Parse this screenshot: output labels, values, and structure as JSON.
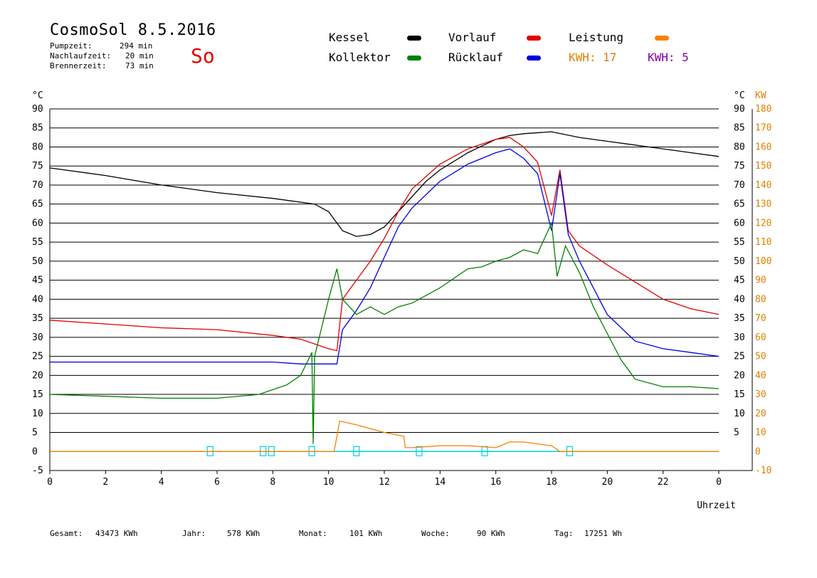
{
  "header": {
    "title": "CosmoSol 8.5.2016",
    "info": [
      {
        "label": "Pumpzeit:",
        "value": "294 min"
      },
      {
        "label": "Nachlaufzeit:",
        "value": "20 min"
      },
      {
        "label": "Brennerzeit:",
        "value": "73 min"
      }
    ],
    "weekday": "So"
  },
  "legend": {
    "kessel": {
      "label": "Kessel",
      "color": "#000000"
    },
    "vorlauf": {
      "label": "Vorlauf",
      "color": "#e00000"
    },
    "leistung": {
      "label": "Leistung",
      "color": "#ff8000"
    },
    "kollektor": {
      "label": "Kollektor",
      "color": "#008000"
    },
    "ruecklauf": {
      "label": "Rücklauf",
      "color": "#0000e0"
    },
    "kwh1": {
      "label": "KWH: 17",
      "color": "#e08000"
    },
    "kwh2": {
      "label": "KWH: 5",
      "color": "#8000a0"
    }
  },
  "footer": {
    "gesamt": {
      "label": "Gesamt:",
      "value": "43473 KWh"
    },
    "jahr": {
      "label": "Jahr:",
      "value": "578 KWh"
    },
    "monat": {
      "label": "Monat:",
      "value": "101 KWh"
    },
    "woche": {
      "label": "Woche:",
      "value": "90 KWh"
    },
    "tag": {
      "label": "Tag:",
      "value": "17251 Wh"
    }
  },
  "chart_data": {
    "type": "line",
    "xlabel": "Uhrzeit",
    "x_ticks": [
      "0",
      "2",
      "4",
      "6",
      "8",
      "10",
      "12",
      "14",
      "16",
      "18",
      "20",
      "22",
      "0"
    ],
    "xlim": [
      0,
      24
    ],
    "ylabel_left": "°C",
    "ylim_left": [
      -5,
      90
    ],
    "y_ticks_left": [
      "-5",
      "0",
      "5",
      "10",
      "15",
      "20",
      "25",
      "30",
      "35",
      "40",
      "45",
      "50",
      "55",
      "60",
      "65",
      "70",
      "75",
      "80",
      "85",
      "90"
    ],
    "ylabel_right_temp": "°C",
    "y_ticks_right_temp": [
      "5",
      "10",
      "15",
      "20",
      "25",
      "30",
      "35",
      "40",
      "45",
      "50",
      "55",
      "60",
      "65",
      "70",
      "75",
      "80",
      "85",
      "90"
    ],
    "ylabel_right_power": "KW",
    "ylim_right_power": [
      -10,
      180
    ],
    "y_ticks_right_power": [
      "-10",
      "0",
      "10",
      "20",
      "30",
      "40",
      "50",
      "60",
      "70",
      "80",
      "90",
      "100",
      "110",
      "120",
      "130",
      "140",
      "150",
      "160",
      "170",
      "180"
    ],
    "grid": true,
    "series": [
      {
        "name": "Kessel",
        "color": "#000000",
        "points": [
          [
            0,
            74.5
          ],
          [
            2,
            72.5
          ],
          [
            4,
            70
          ],
          [
            6,
            68
          ],
          [
            8,
            66.5
          ],
          [
            9.5,
            65
          ],
          [
            10,
            63
          ],
          [
            10.5,
            58
          ],
          [
            11,
            56.5
          ],
          [
            11.5,
            57
          ],
          [
            12,
            59
          ],
          [
            12.5,
            63
          ],
          [
            13,
            67
          ],
          [
            13.5,
            71
          ],
          [
            14,
            74
          ],
          [
            15,
            78.5
          ],
          [
            16,
            82
          ],
          [
            16.5,
            83
          ],
          [
            17,
            83.5
          ],
          [
            18,
            84
          ],
          [
            19,
            82.5
          ],
          [
            20,
            81.5
          ],
          [
            21,
            80.5
          ],
          [
            22,
            79.5
          ],
          [
            23,
            78.5
          ],
          [
            24,
            77.5
          ]
        ]
      },
      {
        "name": "Vorlauf",
        "color": "#e00000",
        "points": [
          [
            0,
            34.5
          ],
          [
            2,
            33.5
          ],
          [
            4,
            32.5
          ],
          [
            6,
            32
          ],
          [
            8,
            30.5
          ],
          [
            9,
            29.5
          ],
          [
            10,
            27
          ],
          [
            10.3,
            26.5
          ],
          [
            10.5,
            40
          ],
          [
            11,
            45
          ],
          [
            11.5,
            50
          ],
          [
            12,
            56
          ],
          [
            12.5,
            63
          ],
          [
            13,
            69
          ],
          [
            14,
            75.5
          ],
          [
            15,
            79.5
          ],
          [
            16,
            82
          ],
          [
            16.5,
            82.5
          ],
          [
            17,
            80
          ],
          [
            17.5,
            76
          ],
          [
            18,
            62
          ],
          [
            18.3,
            74
          ],
          [
            18.6,
            58
          ],
          [
            19,
            54
          ],
          [
            20,
            49
          ],
          [
            21,
            44.5
          ],
          [
            22,
            40
          ],
          [
            23,
            37.5
          ],
          [
            24,
            36
          ]
        ]
      },
      {
        "name": "Rücklauf",
        "color": "#0000e0",
        "points": [
          [
            0,
            23.5
          ],
          [
            2,
            23.5
          ],
          [
            4,
            23.5
          ],
          [
            6,
            23.5
          ],
          [
            8,
            23.5
          ],
          [
            9,
            23
          ],
          [
            10.3,
            23
          ],
          [
            10.5,
            32
          ],
          [
            11,
            37
          ],
          [
            11.5,
            43
          ],
          [
            12,
            51
          ],
          [
            12.5,
            59
          ],
          [
            13,
            64
          ],
          [
            14,
            71
          ],
          [
            15,
            75.5
          ],
          [
            16,
            78.5
          ],
          [
            16.5,
            79.5
          ],
          [
            17,
            77
          ],
          [
            17.5,
            73
          ],
          [
            18,
            58
          ],
          [
            18.3,
            73
          ],
          [
            18.6,
            57
          ],
          [
            19,
            50
          ],
          [
            20,
            36
          ],
          [
            21,
            29
          ],
          [
            22,
            27
          ],
          [
            23,
            26
          ],
          [
            24,
            25
          ]
        ]
      },
      {
        "name": "Kollektor",
        "color": "#008000",
        "points": [
          [
            0,
            15
          ],
          [
            2,
            14.5
          ],
          [
            4,
            14
          ],
          [
            6,
            14
          ],
          [
            7.5,
            15
          ],
          [
            8.5,
            17.5
          ],
          [
            9,
            20
          ],
          [
            9.4,
            26
          ],
          [
            9.45,
            2
          ],
          [
            9.5,
            25
          ],
          [
            10,
            40
          ],
          [
            10.3,
            48
          ],
          [
            10.5,
            40
          ],
          [
            11,
            36
          ],
          [
            11.5,
            38
          ],
          [
            12,
            36
          ],
          [
            12.5,
            38
          ],
          [
            13,
            39
          ],
          [
            14,
            43
          ],
          [
            15,
            48
          ],
          [
            15.5,
            48.5
          ],
          [
            16,
            50
          ],
          [
            16.5,
            51
          ],
          [
            17,
            53
          ],
          [
            17.5,
            52
          ],
          [
            18,
            60
          ],
          [
            18.2,
            46
          ],
          [
            18.5,
            54
          ],
          [
            19,
            47
          ],
          [
            19.5,
            38
          ],
          [
            20,
            31
          ],
          [
            20.5,
            24
          ],
          [
            21,
            19
          ],
          [
            22,
            17
          ],
          [
            23,
            17
          ],
          [
            24,
            16.5
          ]
        ]
      },
      {
        "name": "Leistung",
        "color": "#ff8000",
        "points": [
          [
            0,
            0
          ],
          [
            10.2,
            0
          ],
          [
            10.4,
            8
          ],
          [
            11,
            7
          ],
          [
            12,
            5
          ],
          [
            12.7,
            4
          ],
          [
            12.75,
            1
          ],
          [
            13,
            1
          ],
          [
            14,
            1.5
          ],
          [
            15,
            1.5
          ],
          [
            16,
            1
          ],
          [
            16.5,
            2.5
          ],
          [
            17,
            2.5
          ],
          [
            17.5,
            2
          ],
          [
            18,
            1.5
          ],
          [
            18.3,
            0
          ],
          [
            24,
            0
          ]
        ]
      }
    ]
  }
}
